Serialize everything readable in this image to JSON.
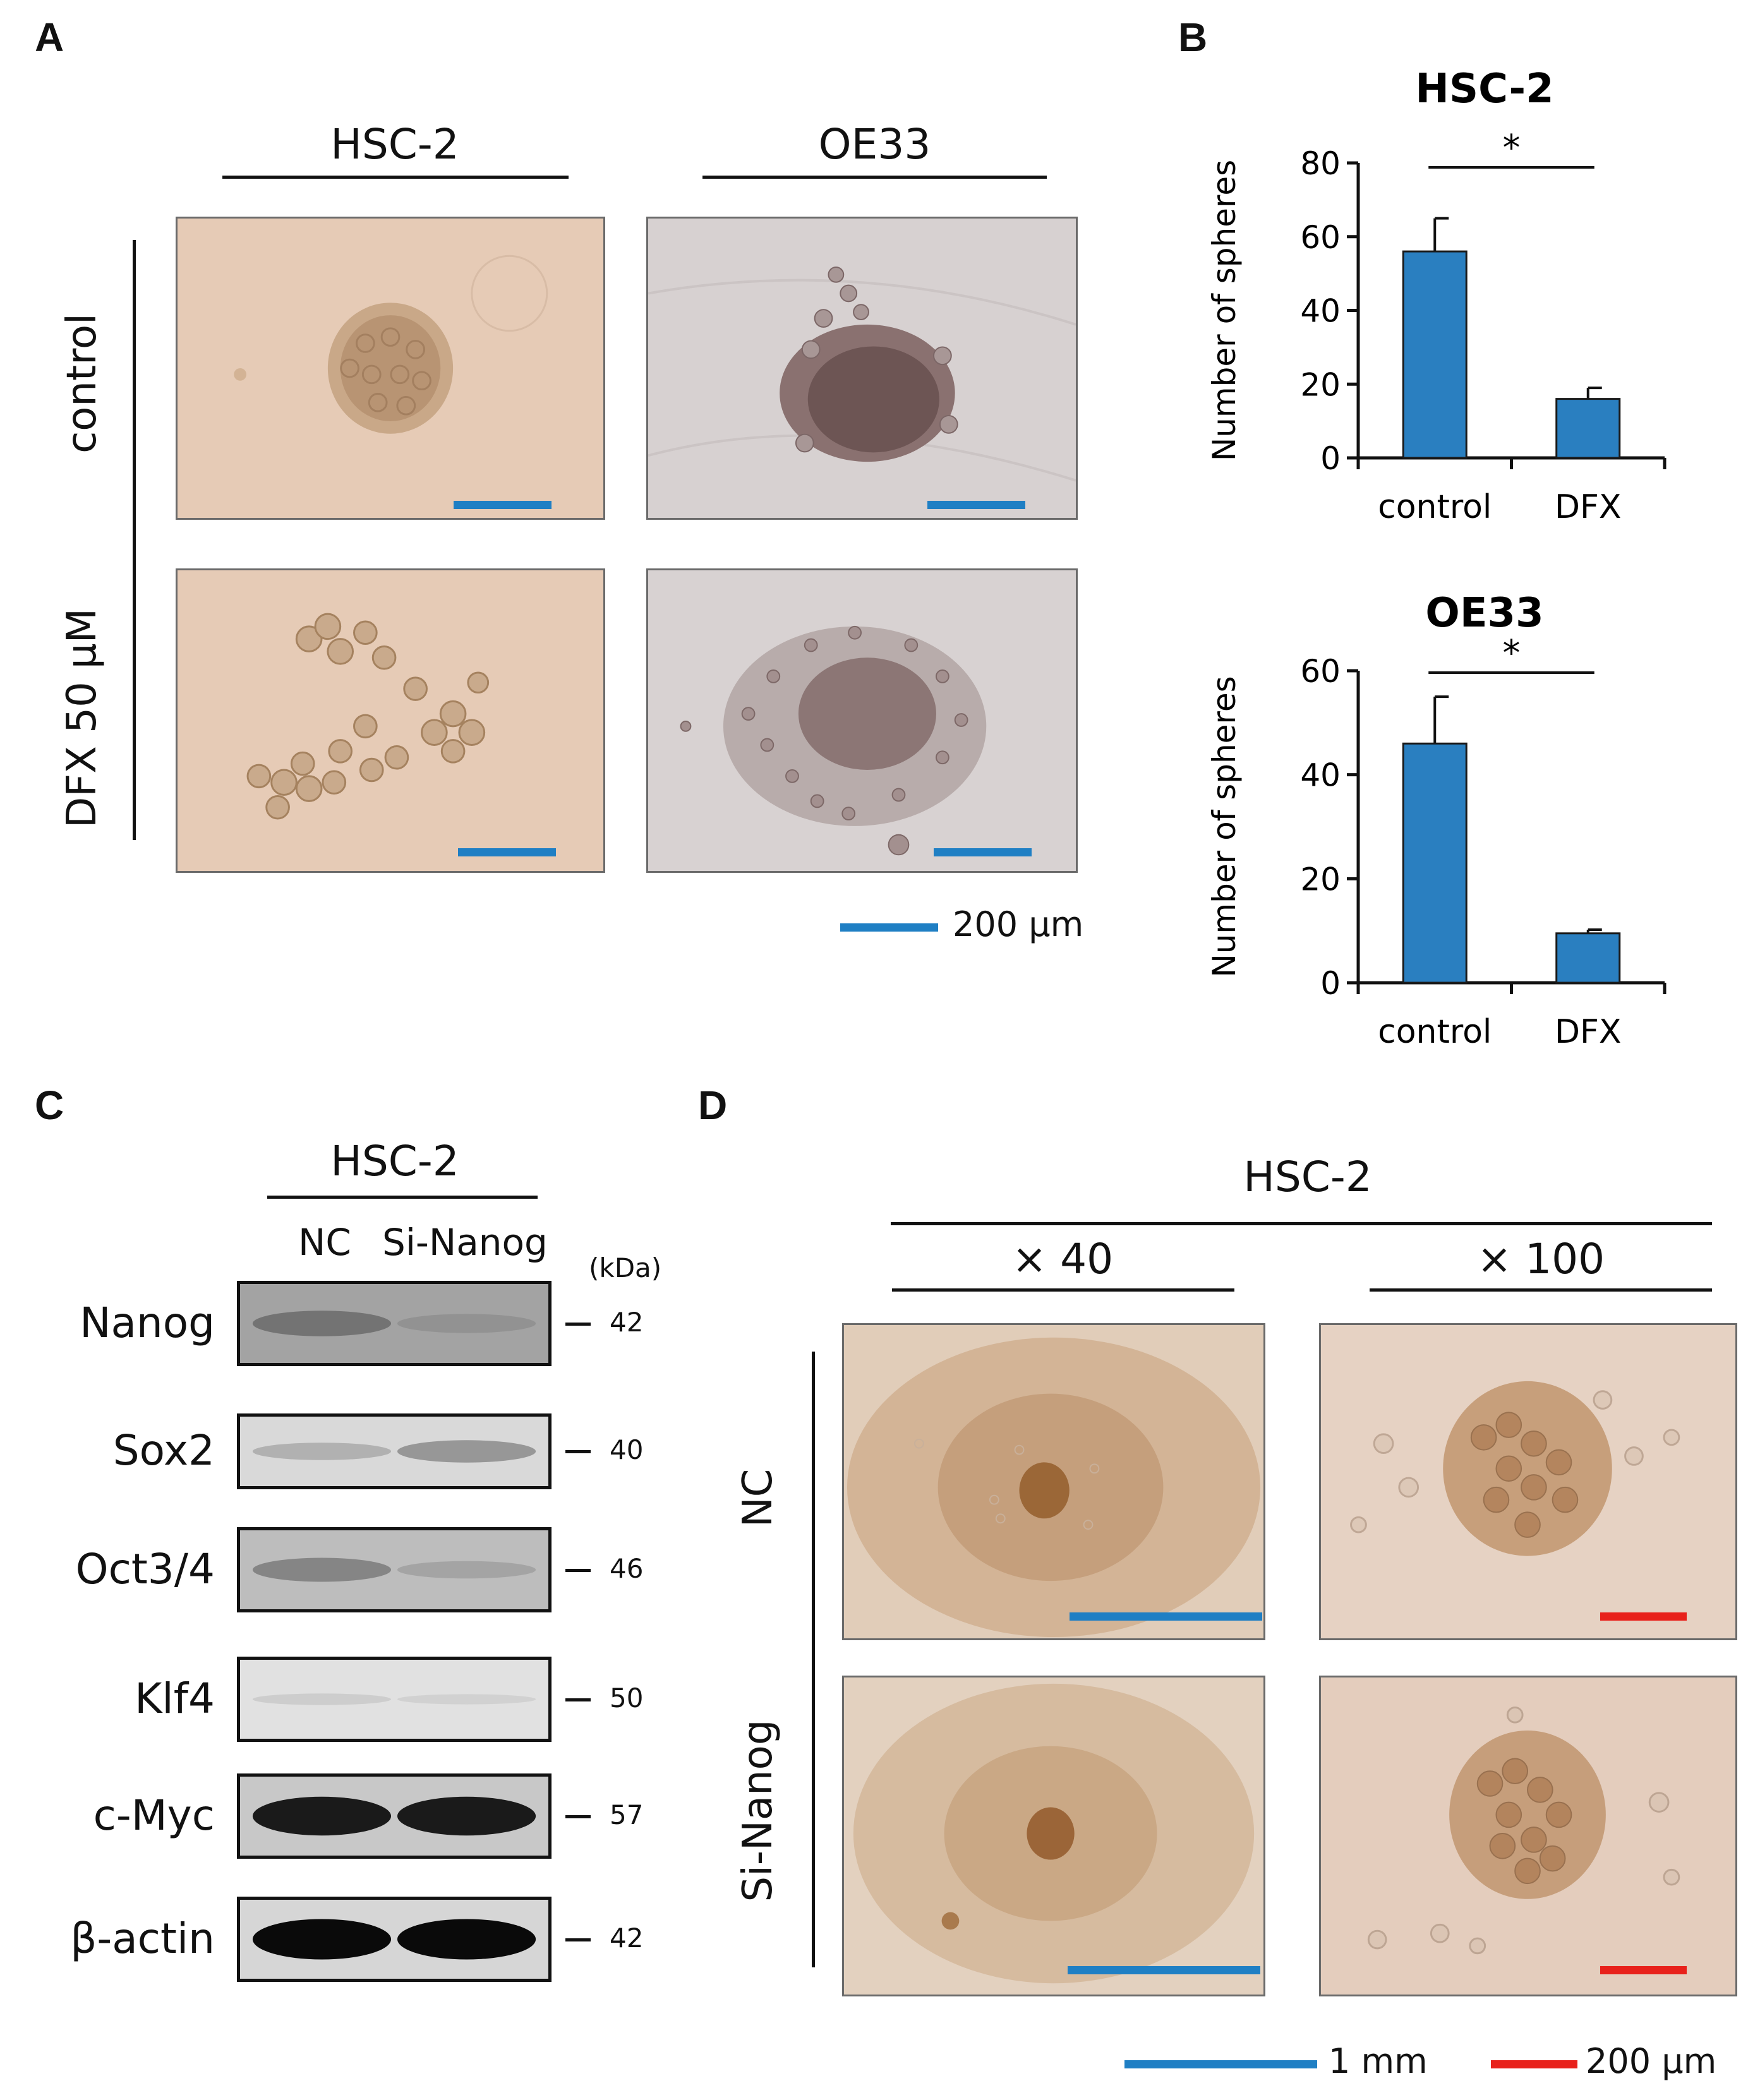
{
  "panels": {
    "a": {
      "letter": "A",
      "col_headers": [
        "HSC-2",
        "OE33"
      ],
      "row_labels": [
        "control",
        "DFX 50 μM"
      ],
      "scale_label": "200 μm",
      "scale_color": "#1f7fc4"
    },
    "b": {
      "letter": "B"
    },
    "c": {
      "letter": "C",
      "title": "HSC-2",
      "lanes": [
        "NC",
        "Si-Nanog"
      ],
      "unit": "(kDa)",
      "blots": [
        {
          "label": "Nanog",
          "mw": "42"
        },
        {
          "label": "Sox2",
          "mw": "40"
        },
        {
          "label": "Oct3/4",
          "mw": "46"
        },
        {
          "label": "Klf4",
          "mw": "50"
        },
        {
          "label": "c-Myc",
          "mw": "57"
        },
        {
          "label": "β-actin",
          "mw": "42"
        }
      ]
    },
    "d": {
      "letter": "D",
      "title": "HSC-2",
      "mags": [
        "× 40",
        "× 100"
      ],
      "row_labels": [
        "NC",
        "Si-Nanog"
      ],
      "scale_labels": [
        "1 mm",
        "200 μm"
      ],
      "scale_colors": [
        "#1f7fc4",
        "#e8211b"
      ]
    }
  },
  "chart_data": [
    {
      "type": "bar",
      "title": "HSC-2",
      "categories": [
        "control",
        "DFX"
      ],
      "values": [
        56,
        16
      ],
      "errors": [
        9,
        3
      ],
      "ylabel": "Number of spheres",
      "ylim": [
        0,
        80
      ],
      "yticks": [
        0,
        20,
        40,
        60,
        80
      ],
      "significance": "*",
      "bar_color": "#2a7fc0"
    },
    {
      "type": "bar",
      "title": "OE33",
      "categories": [
        "control",
        "DFX"
      ],
      "values": [
        46,
        9.5
      ],
      "errors": [
        9,
        0.7
      ],
      "ylabel": "Number of spheres",
      "ylim": [
        0,
        60
      ],
      "yticks": [
        0,
        20,
        40,
        60
      ],
      "significance": "*",
      "bar_color": "#2a7fc0"
    }
  ]
}
